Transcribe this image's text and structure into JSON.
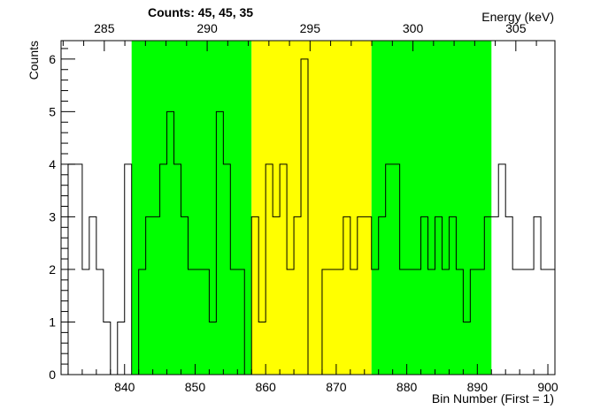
{
  "chart_data": {
    "type": "histogram",
    "title": "Counts:   45,   45,   35",
    "xlabel": "Bin Number (First = 1)",
    "ylabel": "Counts",
    "x2label": "Energy (keV)",
    "xlim": [
      831,
      901
    ],
    "ylim": [
      0,
      6.35
    ],
    "x_ticks": [
      840,
      850,
      860,
      870,
      880,
      890,
      900
    ],
    "y_ticks": [
      0,
      1,
      2,
      3,
      4,
      5,
      6
    ],
    "x2_ticks": [
      285,
      290,
      295,
      300,
      305
    ],
    "x2_range_at_xlim": [
      282.9,
      306.9
    ],
    "bin_start": 831,
    "bin_width": 1,
    "values": [
      0,
      4,
      4,
      2,
      3,
      2,
      1,
      0,
      1,
      4,
      0,
      2,
      3,
      3,
      4,
      5,
      4,
      3,
      2,
      2,
      2,
      1,
      5,
      4,
      2,
      2,
      0,
      3,
      1,
      4,
      3,
      4,
      2,
      3,
      6,
      0,
      0,
      2,
      2,
      2,
      3,
      2,
      3,
      3,
      2,
      3,
      4,
      4,
      2,
      2,
      2,
      3,
      2,
      3,
      2,
      3,
      2,
      1,
      2,
      2,
      3,
      3,
      4,
      3,
      2,
      2,
      2,
      3,
      2,
      2
    ],
    "regions": [
      {
        "from": 841,
        "to": 858,
        "color": "#00ff00"
      },
      {
        "from": 858,
        "to": 875,
        "color": "#ffff00"
      },
      {
        "from": 875,
        "to": 892,
        "color": "#00ff00"
      }
    ],
    "line_color": "#000000",
    "grid": false
  }
}
